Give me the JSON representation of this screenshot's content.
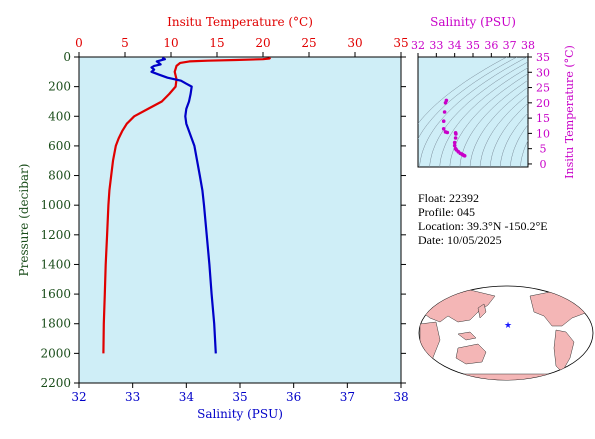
{
  "chart_data": [
    {
      "type": "line",
      "temp_axis": {
        "label": "Insitu Temperature (°C)",
        "range": [
          0,
          35
        ],
        "ticks": [
          0,
          5,
          10,
          15,
          20,
          25,
          30,
          35
        ],
        "color": "#e00000"
      },
      "salinity_axis": {
        "label": "Salinity (PSU)",
        "range": [
          32,
          38
        ],
        "ticks": [
          32,
          33,
          34,
          35,
          36,
          37,
          38
        ],
        "color": "#0000c8"
      },
      "pressure_axis": {
        "label": "Pressure (decibar)",
        "range": [
          0,
          2200
        ],
        "ticks": [
          0,
          200,
          400,
          600,
          800,
          1000,
          1200,
          1400,
          1600,
          1800,
          2000,
          2200
        ],
        "inverted": true,
        "color": "#1a4d1a"
      },
      "series": [
        {
          "variable": "temperature",
          "color": "#e00000",
          "points": [
            [
              20.8,
              5
            ],
            [
              20.7,
              10
            ],
            [
              20.0,
              15
            ],
            [
              17.0,
              20
            ],
            [
              14.0,
              25
            ],
            [
              12.0,
              30
            ],
            [
              11.0,
              40
            ],
            [
              10.6,
              60
            ],
            [
              10.4,
              100
            ],
            [
              10.6,
              150
            ],
            [
              10.5,
              200
            ],
            [
              9.8,
              250
            ],
            [
              9.0,
              300
            ],
            [
              7.5,
              350
            ],
            [
              6.0,
              400
            ],
            [
              5.2,
              450
            ],
            [
              4.7,
              500
            ],
            [
              4.3,
              550
            ],
            [
              4.0,
              600
            ],
            [
              3.7,
              700
            ],
            [
              3.5,
              800
            ],
            [
              3.3,
              900
            ],
            [
              3.2,
              1000
            ],
            [
              3.05,
              1200
            ],
            [
              2.9,
              1400
            ],
            [
              2.8,
              1600
            ],
            [
              2.7,
              1800
            ],
            [
              2.65,
              2000
            ]
          ]
        },
        {
          "variable": "salinity",
          "color": "#0000c8",
          "points": [
            [
              33.55,
              5
            ],
            [
              33.6,
              15
            ],
            [
              33.45,
              30
            ],
            [
              33.52,
              50
            ],
            [
              33.4,
              60
            ],
            [
              33.35,
              70
            ],
            [
              33.4,
              85
            ],
            [
              33.35,
              100
            ],
            [
              33.5,
              120
            ],
            [
              33.65,
              140
            ],
            [
              33.9,
              160
            ],
            [
              34.0,
              180
            ],
            [
              34.1,
              200
            ],
            [
              34.08,
              250
            ],
            [
              34.05,
              300
            ],
            [
              34.0,
              350
            ],
            [
              33.98,
              400
            ],
            [
              34.0,
              450
            ],
            [
              34.05,
              500
            ],
            [
              34.1,
              550
            ],
            [
              34.15,
              600
            ],
            [
              34.2,
              700
            ],
            [
              34.25,
              800
            ],
            [
              34.3,
              900
            ],
            [
              34.33,
              1000
            ],
            [
              34.38,
              1200
            ],
            [
              34.43,
              1400
            ],
            [
              34.47,
              1600
            ],
            [
              34.52,
              1800
            ],
            [
              34.55,
              2000
            ]
          ]
        }
      ]
    },
    {
      "type": "scatter",
      "title": "Salinity (PSU)",
      "x_axis": {
        "label": "Salinity (PSU)",
        "range": [
          32,
          38
        ],
        "ticks": [
          32,
          33,
          34,
          35,
          36,
          37,
          38
        ],
        "color": "#c800c8"
      },
      "y_axis": {
        "label": "Insitu Temperature (°C)",
        "range": [
          -1,
          35
        ],
        "ticks": [
          0,
          5,
          10,
          15,
          20,
          25,
          30,
          35
        ],
        "color": "#c800c8"
      },
      "density_contours": true,
      "points": [
        [
          33.55,
          20.8
        ],
        [
          33.5,
          20.0
        ],
        [
          33.45,
          17.0
        ],
        [
          33.4,
          14.0
        ],
        [
          33.4,
          11.5
        ],
        [
          33.5,
          10.5
        ],
        [
          33.6,
          10.3
        ],
        [
          34.05,
          10.2
        ],
        [
          34.07,
          9.8
        ],
        [
          34.05,
          8.5
        ],
        [
          34.0,
          7.0
        ],
        [
          34.0,
          6.0
        ],
        [
          34.05,
          5.0
        ],
        [
          34.1,
          4.6
        ],
        [
          34.2,
          4.0
        ],
        [
          34.3,
          3.5
        ],
        [
          34.4,
          3.2
        ],
        [
          34.45,
          3.0
        ],
        [
          34.5,
          2.8
        ],
        [
          34.55,
          2.65
        ]
      ]
    }
  ],
  "float_info": {
    "float": "Float: 22392",
    "profile": "Profile: 045",
    "location": "Location: 39.3°N -150.2°E",
    "date": "Date: 10/05/2025"
  },
  "map": {
    "marker": "★",
    "marker_color": "#1a1aff",
    "land_color": "#f4b6b6",
    "ocean_color": "#ffffff"
  }
}
